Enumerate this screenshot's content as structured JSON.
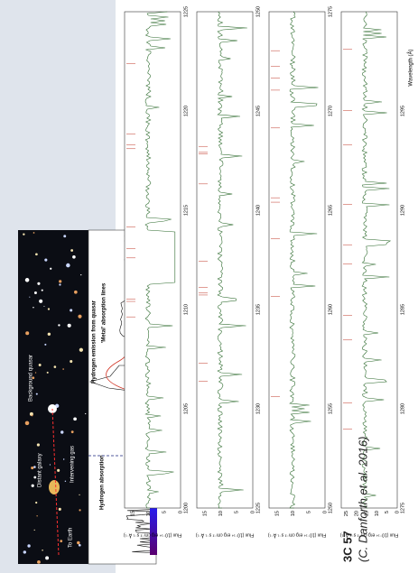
{
  "caption": {
    "title": "3C 57",
    "credit": "(C. Danforth et al. 2016)"
  },
  "illustration": {
    "labels": [
      "To Earth",
      "Intervening gas",
      "Distant galaxy",
      "Background quasar",
      "Hydrogen absorption",
      "Hydrogen emission from quasar",
      "'Metal' absorption lines"
    ],
    "x_axis_title": "Observed Wavelength [Angstroems]",
    "x_ticks": [
      4000,
      5000,
      6000
    ]
  },
  "spectra": {
    "y_axis_title": "Flux (10⁻¹⁴ erg cm⁻² s⁻¹ Å⁻¹)",
    "x_axis_title": "Wavelength (Å)",
    "panels": [
      {
        "x_ticks": [
          1200,
          1205,
          1210,
          1215,
          1220,
          1225
        ],
        "y_ticks": [
          0,
          5,
          10,
          15
        ]
      },
      {
        "x_ticks": [
          1225,
          1230,
          1235,
          1240,
          1245,
          1250
        ],
        "y_ticks": [
          0,
          5,
          10,
          15
        ]
      },
      {
        "x_ticks": [
          1250,
          1255,
          1260,
          1265,
          1270,
          1275
        ],
        "y_ticks": [
          0,
          5,
          10,
          15
        ]
      },
      {
        "x_ticks": [
          1275,
          1280,
          1285,
          1290,
          1295
        ],
        "y_ticks": [
          0,
          5,
          10,
          15,
          20,
          25
        ]
      }
    ]
  }
}
